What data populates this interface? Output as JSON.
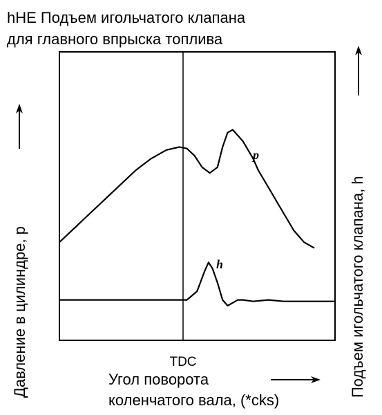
{
  "title_line1": "hHE Подъем игольчатого клапана",
  "title_line2": "для главного впрыска топлива",
  "chart_data": {
    "type": "line",
    "title": "hHE Подъем игольчатого клапана для главного впрыска топлива",
    "xlabel_line1": "Угол поворота",
    "xlabel_line2": "коленчатого вала, (*cks)",
    "ylabel_left": "Давление в цилиндре, p",
    "ylabel_right": "Подъем игольчатого клапана, h",
    "x_tick": "TDC",
    "xlim": [
      0,
      100
    ],
    "ylim": [
      0,
      100
    ],
    "grid": false,
    "series": [
      {
        "name": "p",
        "x": [
          0,
          6,
          12,
          18,
          24,
          30,
          36,
          42,
          47,
          50,
          53,
          56,
          59,
          62,
          64,
          66,
          68,
          70,
          72,
          74,
          76,
          78,
          80,
          82,
          84,
          86,
          88,
          90,
          92,
          94,
          96,
          98,
          100
        ],
        "y": [
          34,
          39,
          44,
          49,
          54,
          59,
          63,
          66,
          67,
          66.5,
          64,
          60,
          58,
          60,
          67,
          72,
          73,
          71,
          69,
          66,
          63,
          59,
          56,
          53,
          50,
          47,
          44,
          41,
          38,
          36,
          34,
          33,
          32
        ]
      },
      {
        "name": "h",
        "x": [
          0,
          10,
          20,
          30,
          40,
          46,
          50,
          54,
          57,
          58.5,
          60,
          62,
          64,
          66,
          68,
          70,
          72,
          76,
          82,
          88,
          94,
          100
        ],
        "y": [
          14,
          14,
          14,
          14,
          14,
          14,
          14,
          17,
          24,
          27,
          25,
          20,
          14,
          12,
          13,
          14,
          14,
          13.5,
          14,
          13.5,
          13.5,
          13.5
        ]
      }
    ]
  },
  "colors": {
    "line": "#000000",
    "background": "#ffffff"
  }
}
